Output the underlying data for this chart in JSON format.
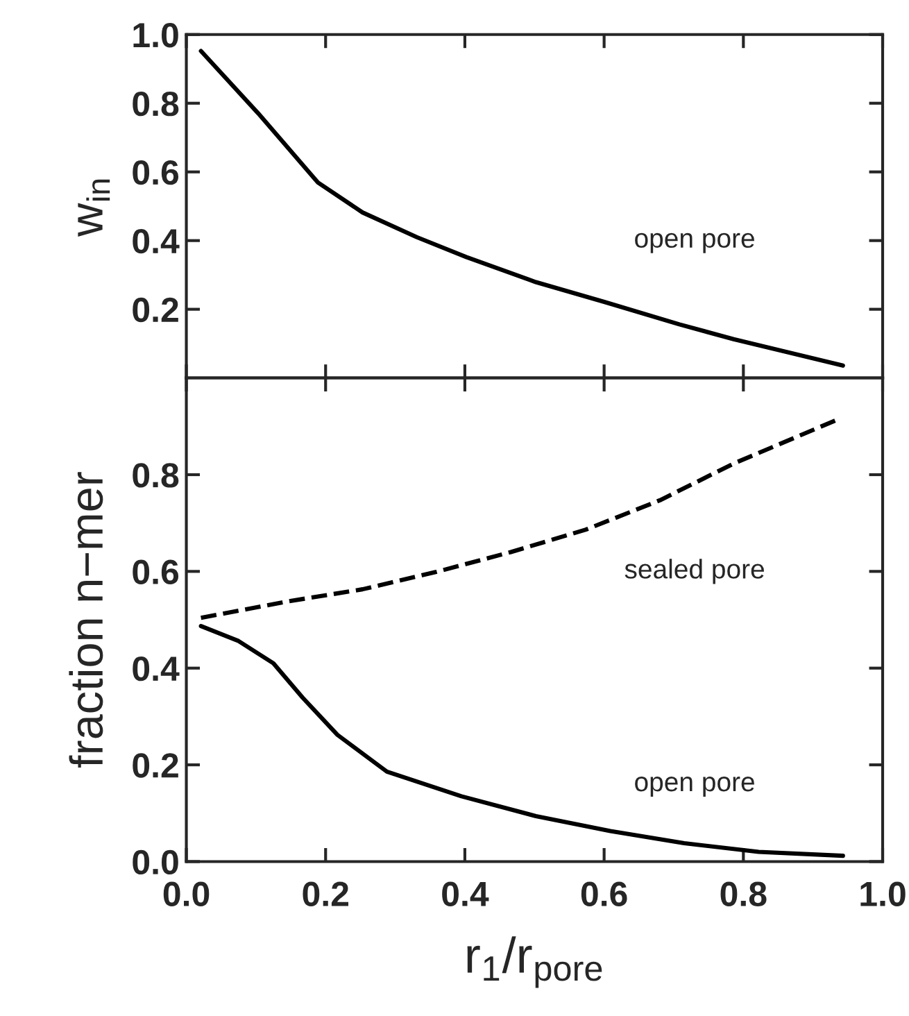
{
  "chart_data": [
    {
      "type": "line",
      "ylabel": "w$_{in}$",
      "xlim": [
        0,
        1
      ],
      "xticks": [
        {
          "value": 0,
          "label": null
        },
        {
          "value": 0.2,
          "label": null
        },
        {
          "value": 0.4,
          "label": null
        },
        {
          "value": 0.6,
          "label": null
        },
        {
          "value": 0.8,
          "label": null
        },
        {
          "value": 1,
          "label": null
        }
      ],
      "ylim": [
        0,
        1
      ],
      "yticks": [
        0.2,
        0.4,
        0.6,
        0.8,
        {
          "value": 1,
          "label": "1.0"
        }
      ],
      "tick_labels": "y",
      "grid": false,
      "legend": false,
      "annotations": [
        "open pore"
      ],
      "series": [
        {
          "color": "#000000",
          "line_style": "solid",
          "x": [
            0.021,
            0.103,
            0.189,
            0.253,
            0.331,
            0.402,
            0.502,
            0.601,
            0.708,
            0.786,
            0.943
          ],
          "values": [
            0.952,
            0.771,
            0.569,
            0.482,
            0.41,
            0.352,
            0.279,
            0.221,
            0.156,
            0.113,
            0.036
          ]
        }
      ]
    },
    {
      "type": "line",
      "ylabel": "fraction n−mer",
      "xlabel": "r$_{1}$/r$_{pore}$",
      "xlim": [
        0,
        1
      ],
      "xticks": [
        {
          "value": 0,
          "label": "0.0"
        },
        0.2,
        0.4,
        0.6,
        0.8,
        {
          "value": 1,
          "label": "1.0"
        }
      ],
      "ylim": [
        0,
        1
      ],
      "yticks": [
        {
          "value": 0,
          "label": "0.0"
        },
        0.2,
        0.4,
        0.6,
        0.8
      ],
      "grid": false,
      "legend": false,
      "annotations": [
        "sealed pore",
        "open pore"
      ],
      "series": [
        {
          "color": "#000000",
          "line_style": "dashed",
          "x": [
            0.021,
            0.146,
            0.253,
            0.359,
            0.466,
            0.573,
            0.68,
            0.786,
            0.932
          ],
          "values": [
            0.504,
            0.538,
            0.563,
            0.599,
            0.64,
            0.686,
            0.747,
            0.823,
            0.912
          ]
        },
        {
          "color": "#000000",
          "line_style": "solid",
          "x": [
            0.021,
            0.075,
            0.125,
            0.167,
            0.217,
            0.288,
            0.395,
            0.502,
            0.609,
            0.715,
            0.822,
            0.943
          ],
          "values": [
            0.487,
            0.456,
            0.41,
            0.339,
            0.262,
            0.186,
            0.135,
            0.094,
            0.063,
            0.038,
            0.02,
            0.012
          ]
        }
      ]
    }
  ]
}
